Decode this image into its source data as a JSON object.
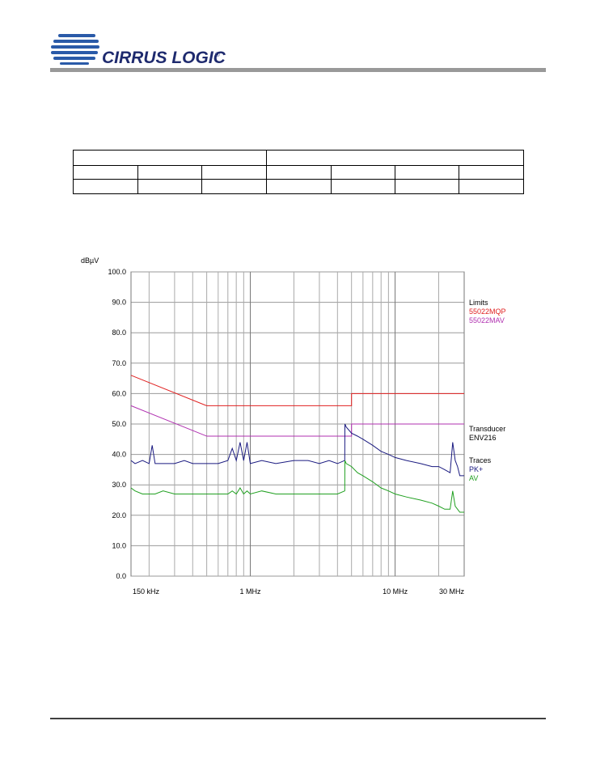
{
  "header": {
    "logo_text": "CIRRUS LOGIC",
    "logo_mark": "®"
  },
  "chart_data": {
    "type": "line",
    "y_label": "dBµV",
    "xlim": [
      0.15,
      30
    ],
    "x_log": true,
    "xticks": [
      {
        "value": 0.15,
        "label": "150 kHz"
      },
      {
        "value": 1,
        "label": "1 MHz"
      },
      {
        "value": 10,
        "label": "10 MHz"
      },
      {
        "value": 30,
        "label": "30 MHz"
      }
    ],
    "xminor_grid": [
      0.2,
      0.3,
      0.4,
      0.5,
      0.6,
      0.7,
      0.8,
      0.9,
      2,
      3,
      4,
      5,
      6,
      7,
      8,
      9,
      20
    ],
    "ylim": [
      0,
      100
    ],
    "yticks": [
      {
        "value": 0,
        "label": "0.0"
      },
      {
        "value": 10,
        "label": "10.0"
      },
      {
        "value": 20,
        "label": "20.0"
      },
      {
        "value": 30,
        "label": "30.0"
      },
      {
        "value": 40,
        "label": "40.0"
      },
      {
        "value": 50,
        "label": "50.0"
      },
      {
        "value": 60,
        "label": "60.0"
      },
      {
        "value": 70,
        "label": "70.0"
      },
      {
        "value": 80,
        "label": "80.0"
      },
      {
        "value": 90,
        "label": "90.0"
      },
      {
        "value": 100,
        "label": "100.0"
      }
    ],
    "grid": true,
    "limits_label": "Limits",
    "transducer_label": "Transducer",
    "transducer": "ENV216",
    "traces_label": "Traces",
    "series": [
      {
        "name": "55022MQP",
        "color": "#e02020",
        "x": [
          0.15,
          0.5,
          5,
          5,
          30
        ],
        "values": [
          66,
          56,
          56,
          60,
          60
        ]
      },
      {
        "name": "55022MAV",
        "color": "#b030b0",
        "x": [
          0.15,
          0.5,
          5,
          5,
          30
        ],
        "values": [
          56,
          46,
          46,
          50,
          50
        ]
      },
      {
        "name": "PK+",
        "color": "#1a1a80",
        "x": [
          0.15,
          0.16,
          0.18,
          0.2,
          0.21,
          0.22,
          0.25,
          0.3,
          0.35,
          0.4,
          0.45,
          0.5,
          0.6,
          0.7,
          0.75,
          0.8,
          0.85,
          0.9,
          0.95,
          1,
          1.2,
          1.5,
          2,
          2.5,
          3,
          3.5,
          4,
          4.49,
          4.5,
          4.6,
          5,
          5.5,
          6,
          7,
          8,
          9,
          10,
          12,
          15,
          18,
          20,
          22,
          24,
          25,
          26,
          27,
          28,
          30
        ],
        "values": [
          38,
          37,
          38,
          37,
          43,
          37,
          37,
          37,
          38,
          37,
          37,
          37,
          37,
          38,
          42,
          38,
          44,
          38,
          44,
          37,
          38,
          37,
          38,
          38,
          37,
          38,
          37,
          38,
          50,
          49,
          47,
          46,
          45,
          43,
          41,
          40,
          39,
          38,
          37,
          36,
          36,
          35,
          34,
          44,
          38,
          36,
          33,
          33
        ]
      },
      {
        "name": "AV",
        "color": "#20a020",
        "x": [
          0.15,
          0.16,
          0.18,
          0.2,
          0.21,
          0.22,
          0.25,
          0.3,
          0.35,
          0.4,
          0.45,
          0.5,
          0.6,
          0.7,
          0.75,
          0.8,
          0.85,
          0.9,
          0.95,
          1,
          1.2,
          1.5,
          2,
          2.5,
          3,
          3.5,
          4,
          4.49,
          4.5,
          4.6,
          5,
          5.5,
          6,
          7,
          8,
          9,
          10,
          12,
          15,
          18,
          20,
          22,
          24,
          25,
          26,
          27,
          28,
          30
        ],
        "values": [
          29,
          28,
          27,
          27,
          27,
          27,
          28,
          27,
          27,
          27,
          27,
          27,
          27,
          27,
          28,
          27,
          29,
          27,
          28,
          27,
          28,
          27,
          27,
          27,
          27,
          27,
          27,
          28,
          38,
          37,
          36,
          34,
          33,
          31,
          29,
          28,
          27,
          26,
          25,
          24,
          23,
          22,
          22,
          28,
          23,
          22,
          21,
          21
        ]
      }
    ]
  }
}
